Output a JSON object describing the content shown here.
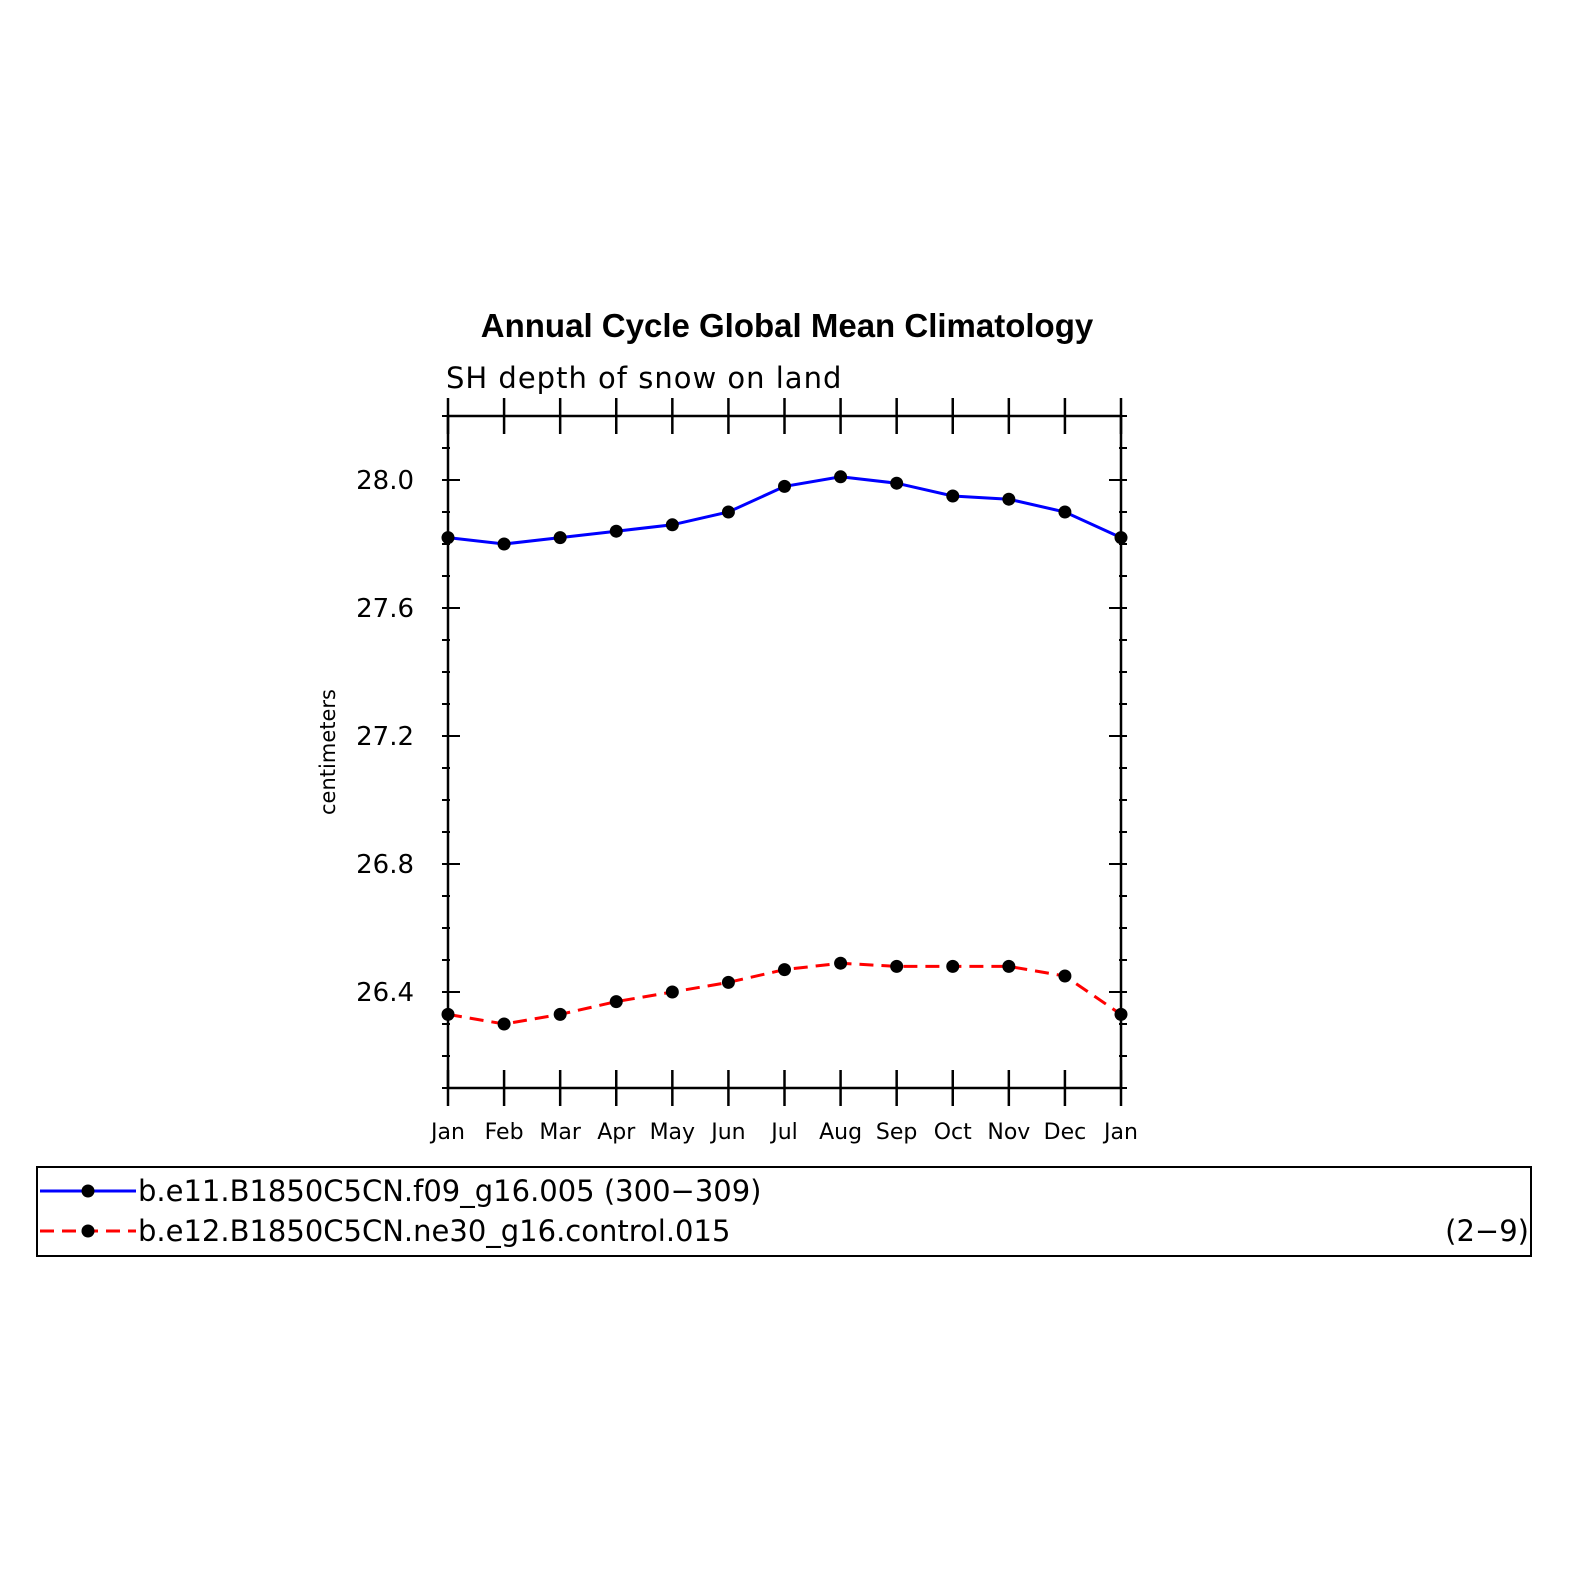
{
  "chart_data": {
    "type": "line",
    "title": "Annual Cycle Global Mean Climatology",
    "subtitle": "SH depth of snow on land",
    "ylabel": "centimeters",
    "xlabel": "",
    "categories": [
      "Jan",
      "Feb",
      "Mar",
      "Apr",
      "May",
      "Jun",
      "Jul",
      "Aug",
      "Sep",
      "Oct",
      "Nov",
      "Dec",
      "Jan"
    ],
    "ylim": [
      26.1,
      28.2
    ],
    "yticks": [
      "26.4",
      "26.8",
      "27.2",
      "27.6",
      "28.0"
    ],
    "grid": false,
    "legend_position": "bottom",
    "series": [
      {
        "name": "b.e11.B1850C5CN.f09_g16.005 (300−309)",
        "color": "#0000ff",
        "dash": "solid",
        "values": [
          27.82,
          27.8,
          27.82,
          27.84,
          27.86,
          27.9,
          27.98,
          28.01,
          27.99,
          27.95,
          27.94,
          27.9,
          27.82
        ]
      },
      {
        "name": "b.e12.B1850C5CN.ne30_g16.control.015",
        "years": "(2−9)",
        "color": "#ff0000",
        "dash": "dashed",
        "values": [
          26.33,
          26.3,
          26.33,
          26.37,
          26.4,
          26.43,
          26.47,
          26.49,
          26.48,
          26.48,
          26.48,
          26.45,
          26.33
        ]
      }
    ]
  }
}
